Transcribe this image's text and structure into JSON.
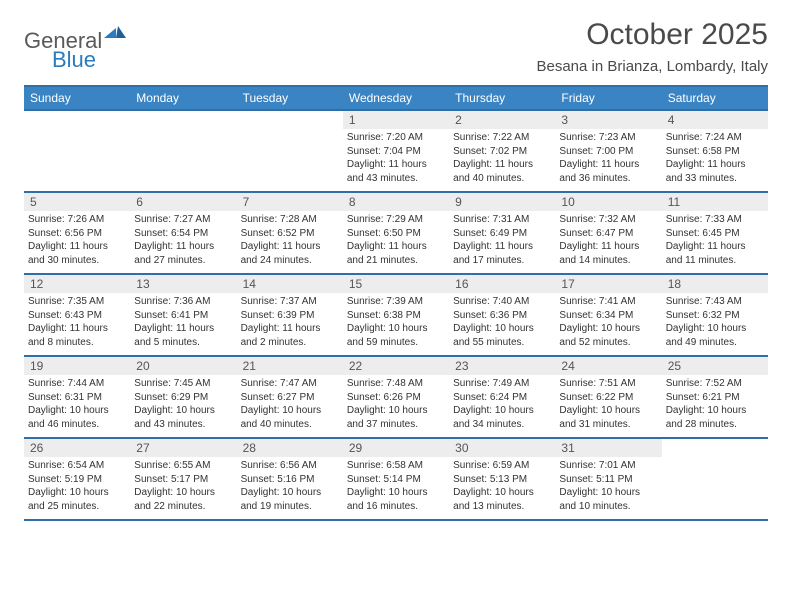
{
  "logo": {
    "word1": "General",
    "word2": "Blue"
  },
  "title": "October 2025",
  "location": "Besana in Brianza, Lombardy, Italy",
  "colors": {
    "header_bg": "#3b84c4",
    "header_border": "#2f6fa8",
    "daynum_bg": "#ededed",
    "text": "#333333",
    "logo_gray": "#5a5a5a",
    "logo_blue": "#2b7bbf"
  },
  "dow": [
    "Sunday",
    "Monday",
    "Tuesday",
    "Wednesday",
    "Thursday",
    "Friday",
    "Saturday"
  ],
  "weeks": [
    [
      {
        "empty": true
      },
      {
        "empty": true
      },
      {
        "empty": true
      },
      {
        "day": "1",
        "sunrise": "Sunrise: 7:20 AM",
        "sunset": "Sunset: 7:04 PM",
        "dl1": "Daylight: 11 hours",
        "dl2": "and 43 minutes."
      },
      {
        "day": "2",
        "sunrise": "Sunrise: 7:22 AM",
        "sunset": "Sunset: 7:02 PM",
        "dl1": "Daylight: 11 hours",
        "dl2": "and 40 minutes."
      },
      {
        "day": "3",
        "sunrise": "Sunrise: 7:23 AM",
        "sunset": "Sunset: 7:00 PM",
        "dl1": "Daylight: 11 hours",
        "dl2": "and 36 minutes."
      },
      {
        "day": "4",
        "sunrise": "Sunrise: 7:24 AM",
        "sunset": "Sunset: 6:58 PM",
        "dl1": "Daylight: 11 hours",
        "dl2": "and 33 minutes."
      }
    ],
    [
      {
        "day": "5",
        "sunrise": "Sunrise: 7:26 AM",
        "sunset": "Sunset: 6:56 PM",
        "dl1": "Daylight: 11 hours",
        "dl2": "and 30 minutes."
      },
      {
        "day": "6",
        "sunrise": "Sunrise: 7:27 AM",
        "sunset": "Sunset: 6:54 PM",
        "dl1": "Daylight: 11 hours",
        "dl2": "and 27 minutes."
      },
      {
        "day": "7",
        "sunrise": "Sunrise: 7:28 AM",
        "sunset": "Sunset: 6:52 PM",
        "dl1": "Daylight: 11 hours",
        "dl2": "and 24 minutes."
      },
      {
        "day": "8",
        "sunrise": "Sunrise: 7:29 AM",
        "sunset": "Sunset: 6:50 PM",
        "dl1": "Daylight: 11 hours",
        "dl2": "and 21 minutes."
      },
      {
        "day": "9",
        "sunrise": "Sunrise: 7:31 AM",
        "sunset": "Sunset: 6:49 PM",
        "dl1": "Daylight: 11 hours",
        "dl2": "and 17 minutes."
      },
      {
        "day": "10",
        "sunrise": "Sunrise: 7:32 AM",
        "sunset": "Sunset: 6:47 PM",
        "dl1": "Daylight: 11 hours",
        "dl2": "and 14 minutes."
      },
      {
        "day": "11",
        "sunrise": "Sunrise: 7:33 AM",
        "sunset": "Sunset: 6:45 PM",
        "dl1": "Daylight: 11 hours",
        "dl2": "and 11 minutes."
      }
    ],
    [
      {
        "day": "12",
        "sunrise": "Sunrise: 7:35 AM",
        "sunset": "Sunset: 6:43 PM",
        "dl1": "Daylight: 11 hours",
        "dl2": "and 8 minutes."
      },
      {
        "day": "13",
        "sunrise": "Sunrise: 7:36 AM",
        "sunset": "Sunset: 6:41 PM",
        "dl1": "Daylight: 11 hours",
        "dl2": "and 5 minutes."
      },
      {
        "day": "14",
        "sunrise": "Sunrise: 7:37 AM",
        "sunset": "Sunset: 6:39 PM",
        "dl1": "Daylight: 11 hours",
        "dl2": "and 2 minutes."
      },
      {
        "day": "15",
        "sunrise": "Sunrise: 7:39 AM",
        "sunset": "Sunset: 6:38 PM",
        "dl1": "Daylight: 10 hours",
        "dl2": "and 59 minutes."
      },
      {
        "day": "16",
        "sunrise": "Sunrise: 7:40 AM",
        "sunset": "Sunset: 6:36 PM",
        "dl1": "Daylight: 10 hours",
        "dl2": "and 55 minutes."
      },
      {
        "day": "17",
        "sunrise": "Sunrise: 7:41 AM",
        "sunset": "Sunset: 6:34 PM",
        "dl1": "Daylight: 10 hours",
        "dl2": "and 52 minutes."
      },
      {
        "day": "18",
        "sunrise": "Sunrise: 7:43 AM",
        "sunset": "Sunset: 6:32 PM",
        "dl1": "Daylight: 10 hours",
        "dl2": "and 49 minutes."
      }
    ],
    [
      {
        "day": "19",
        "sunrise": "Sunrise: 7:44 AM",
        "sunset": "Sunset: 6:31 PM",
        "dl1": "Daylight: 10 hours",
        "dl2": "and 46 minutes."
      },
      {
        "day": "20",
        "sunrise": "Sunrise: 7:45 AM",
        "sunset": "Sunset: 6:29 PM",
        "dl1": "Daylight: 10 hours",
        "dl2": "and 43 minutes."
      },
      {
        "day": "21",
        "sunrise": "Sunrise: 7:47 AM",
        "sunset": "Sunset: 6:27 PM",
        "dl1": "Daylight: 10 hours",
        "dl2": "and 40 minutes."
      },
      {
        "day": "22",
        "sunrise": "Sunrise: 7:48 AM",
        "sunset": "Sunset: 6:26 PM",
        "dl1": "Daylight: 10 hours",
        "dl2": "and 37 minutes."
      },
      {
        "day": "23",
        "sunrise": "Sunrise: 7:49 AM",
        "sunset": "Sunset: 6:24 PM",
        "dl1": "Daylight: 10 hours",
        "dl2": "and 34 minutes."
      },
      {
        "day": "24",
        "sunrise": "Sunrise: 7:51 AM",
        "sunset": "Sunset: 6:22 PM",
        "dl1": "Daylight: 10 hours",
        "dl2": "and 31 minutes."
      },
      {
        "day": "25",
        "sunrise": "Sunrise: 7:52 AM",
        "sunset": "Sunset: 6:21 PM",
        "dl1": "Daylight: 10 hours",
        "dl2": "and 28 minutes."
      }
    ],
    [
      {
        "day": "26",
        "sunrise": "Sunrise: 6:54 AM",
        "sunset": "Sunset: 5:19 PM",
        "dl1": "Daylight: 10 hours",
        "dl2": "and 25 minutes."
      },
      {
        "day": "27",
        "sunrise": "Sunrise: 6:55 AM",
        "sunset": "Sunset: 5:17 PM",
        "dl1": "Daylight: 10 hours",
        "dl2": "and 22 minutes."
      },
      {
        "day": "28",
        "sunrise": "Sunrise: 6:56 AM",
        "sunset": "Sunset: 5:16 PM",
        "dl1": "Daylight: 10 hours",
        "dl2": "and 19 minutes."
      },
      {
        "day": "29",
        "sunrise": "Sunrise: 6:58 AM",
        "sunset": "Sunset: 5:14 PM",
        "dl1": "Daylight: 10 hours",
        "dl2": "and 16 minutes."
      },
      {
        "day": "30",
        "sunrise": "Sunrise: 6:59 AM",
        "sunset": "Sunset: 5:13 PM",
        "dl1": "Daylight: 10 hours",
        "dl2": "and 13 minutes."
      },
      {
        "day": "31",
        "sunrise": "Sunrise: 7:01 AM",
        "sunset": "Sunset: 5:11 PM",
        "dl1": "Daylight: 10 hours",
        "dl2": "and 10 minutes."
      },
      {
        "empty": true
      }
    ]
  ]
}
